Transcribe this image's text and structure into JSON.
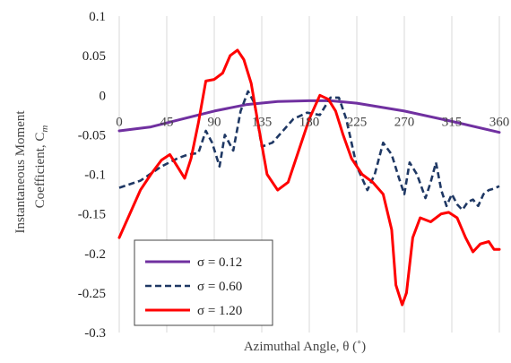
{
  "chart_data": {
    "type": "line",
    "xlabel": "Azimuthal Angle,   θ (˚)",
    "ylabel_line1": "Instantaneous Moment",
    "ylabel_line2": "Coefficient,   C",
    "ylabel_sub": "m",
    "xlim": [
      0,
      360
    ],
    "ylim": [
      -0.3,
      0.1
    ],
    "x_ticks": [
      0,
      45,
      90,
      135,
      180,
      225,
      270,
      315,
      360
    ],
    "x_tick_labels": [
      "0",
      "45",
      "90",
      "135",
      "180",
      "225",
      "270",
      "315",
      "360"
    ],
    "y_ticks": [
      0.1,
      0.05,
      0,
      -0.05,
      -0.1,
      -0.15,
      -0.2,
      -0.25,
      -0.3
    ],
    "y_tick_labels": [
      "0.1",
      "0.05",
      "0",
      "-0.05",
      "-0.1",
      "-0.15",
      "-0.2",
      "-0.25",
      "-0.3"
    ],
    "grid": "vertical",
    "legend_position": "bottom-left",
    "series": [
      {
        "name": "σ = 0.12",
        "color": "#7030A0",
        "style": "solid",
        "x": [
          0,
          30,
          60,
          90,
          120,
          150,
          180,
          200,
          225,
          270,
          315,
          360
        ],
        "y": [
          -0.045,
          -0.04,
          -0.03,
          -0.02,
          -0.012,
          -0.008,
          -0.007,
          -0.007,
          -0.01,
          -0.02,
          -0.033,
          -0.047
        ]
      },
      {
        "name": "σ = 0.60",
        "color": "#1F3864",
        "style": "dashed",
        "x": [
          0,
          20,
          40,
          55,
          65,
          75,
          82,
          88,
          95,
          100,
          108,
          115,
          122,
          128,
          135,
          145,
          155,
          165,
          178,
          190,
          200,
          208,
          215,
          225,
          235,
          242,
          250,
          258,
          265,
          270,
          275,
          282,
          290,
          295,
          300,
          305,
          310,
          315,
          320,
          325,
          330,
          335,
          340,
          345,
          350,
          355,
          360
        ],
        "y": [
          -0.117,
          -0.108,
          -0.09,
          -0.08,
          -0.075,
          -0.073,
          -0.045,
          -0.06,
          -0.09,
          -0.05,
          -0.07,
          -0.02,
          0.005,
          -0.01,
          -0.065,
          -0.06,
          -0.045,
          -0.03,
          -0.022,
          -0.025,
          -0.003,
          -0.003,
          -0.03,
          -0.09,
          -0.12,
          -0.1,
          -0.06,
          -0.075,
          -0.105,
          -0.125,
          -0.085,
          -0.1,
          -0.13,
          -0.11,
          -0.085,
          -0.12,
          -0.14,
          -0.125,
          -0.138,
          -0.145,
          -0.135,
          -0.132,
          -0.14,
          -0.125,
          -0.12,
          -0.118,
          -0.115
        ]
      },
      {
        "name": "σ = 1.20",
        "color": "#FF0000",
        "style": "solid",
        "x": [
          0,
          10,
          20,
          30,
          40,
          48,
          55,
          62,
          68,
          75,
          82,
          90,
          98,
          105,
          112,
          118,
          125,
          132,
          140,
          150,
          160,
          170,
          180,
          190,
          198,
          205,
          212,
          220,
          230,
          240,
          250,
          258,
          262,
          268,
          272,
          278,
          285,
          295,
          305,
          312,
          320,
          328,
          335,
          342,
          350,
          355,
          360
        ],
        "y": [
          -0.18,
          -0.15,
          -0.12,
          -0.1,
          -0.082,
          -0.075,
          -0.09,
          -0.105,
          -0.08,
          -0.035,
          0.018,
          0.02,
          0.028,
          0.05,
          0.057,
          0.045,
          0.015,
          -0.04,
          -0.1,
          -0.12,
          -0.11,
          -0.07,
          -0.03,
          0.0,
          -0.005,
          -0.02,
          -0.05,
          -0.08,
          -0.1,
          -0.11,
          -0.125,
          -0.17,
          -0.24,
          -0.265,
          -0.25,
          -0.18,
          -0.155,
          -0.16,
          -0.15,
          -0.148,
          -0.155,
          -0.18,
          -0.198,
          -0.188,
          -0.185,
          -0.195,
          -0.195
        ]
      }
    ]
  }
}
